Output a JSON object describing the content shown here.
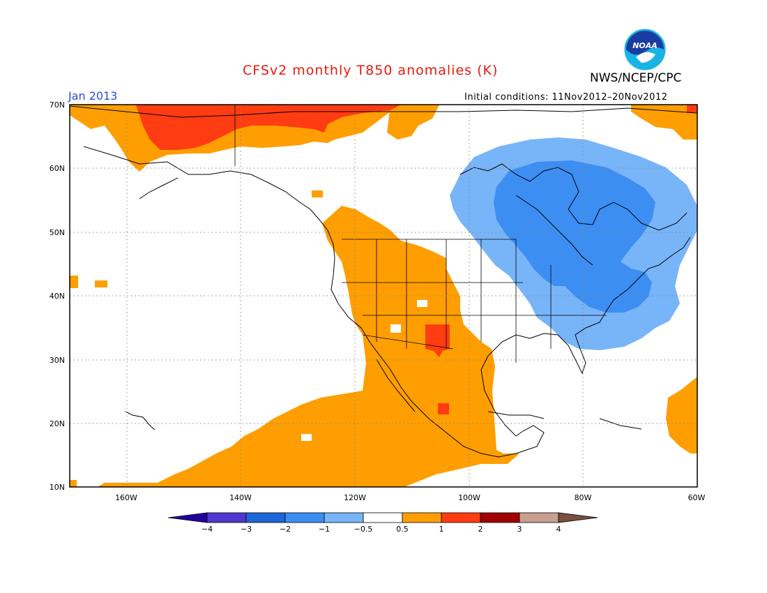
{
  "header": {
    "title": "CFSv2 monthly T850 anomalies (K)",
    "agency": "NWS/NCEP/CPC",
    "month": "Jan 2013",
    "initial_conditions": "Initial conditions: 11Nov2012–20Nov2012",
    "logo_text": "NOAA"
  },
  "map": {
    "lat_labels": [
      "70N",
      "60N",
      "50N",
      "40N",
      "30N",
      "20N",
      "10N"
    ],
    "lon_labels": [
      "160W",
      "140W",
      "120W",
      "100W",
      "80W",
      "60W"
    ],
    "lon_range": [
      -171,
      -60
    ],
    "lat_range": [
      10,
      70
    ]
  },
  "legend": {
    "labels": [
      "−4",
      "−3",
      "−2",
      "−1",
      "−0.5",
      "0.5",
      "1",
      "2",
      "3",
      "4"
    ],
    "colors": [
      "#2200a0",
      "#5038cc",
      "#1e66d8",
      "#3c8ef2",
      "#78b4f8",
      "#ffffff",
      "#ff9e00",
      "#ff3c12",
      "#a00000",
      "#c8a090",
      "#785040"
    ]
  },
  "colors": {
    "anom_05_1": "#ff9e00",
    "anom_1_2": "#ff3c12",
    "anom_neg_05_1": "#78b4f8",
    "anom_neg_1_2": "#3c8ef2",
    "title": "#e8180c",
    "month": "#2a4fd6"
  }
}
